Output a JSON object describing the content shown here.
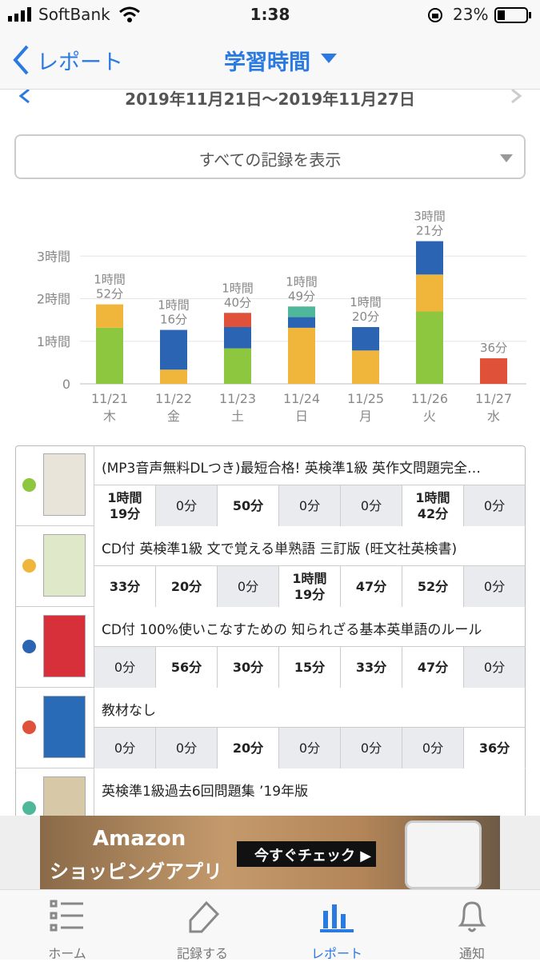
{
  "status_bar": {
    "carrier": "SoftBank",
    "time": "1:38",
    "battery": "23%"
  },
  "nav": {
    "back": "レポート",
    "title": "学習時間"
  },
  "date_range": "2019年11月21日〜2019年11月27日",
  "filter": "すべての記録を表示",
  "chart_data": {
    "type": "bar",
    "stacked": true,
    "categories": [
      "11/21",
      "11/22",
      "11/23",
      "11/24",
      "11/25",
      "11/26",
      "11/27"
    ],
    "weekdays": [
      "木",
      "金",
      "土",
      "日",
      "月",
      "火",
      "水"
    ],
    "series": [
      {
        "color": "#8dc63f",
        "values": [
          79,
          0,
          50,
          0,
          0,
          102,
          0
        ]
      },
      {
        "color": "#f0b63c",
        "values": [
          33,
          20,
          0,
          79,
          47,
          52,
          0
        ]
      },
      {
        "color": "#2c64b4",
        "values": [
          0,
          56,
          30,
          15,
          33,
          47,
          0
        ]
      },
      {
        "color": "#e0513a",
        "values": [
          0,
          0,
          20,
          0,
          0,
          0,
          36
        ]
      },
      {
        "color": "#4fb89a",
        "values": [
          0,
          0,
          0,
          15,
          0,
          0,
          0
        ]
      }
    ],
    "total_labels": [
      [
        "1時間",
        "52分"
      ],
      [
        "1時間",
        "16分"
      ],
      [
        "1時間",
        "40分"
      ],
      [
        "1時間",
        "49分"
      ],
      [
        "1時間",
        "20分"
      ],
      [
        "3時間",
        "21分"
      ],
      [
        "36分"
      ]
    ],
    "ylim": [
      0,
      240
    ],
    "yticks": [
      0,
      {
        "value": 60,
        "label": "1時間"
      },
      {
        "value": 120,
        "label": "2時間"
      },
      {
        "value": 180,
        "label": "3時間"
      }
    ],
    "grid": true
  },
  "materials": [
    {
      "title": "(MP3音声無料DLつき)最短合格! 英検準1級 英作文問題完全…",
      "cells": [
        [
          "1時間",
          "19分"
        ],
        [
          "0分"
        ],
        [
          "50分"
        ],
        [
          "0分"
        ],
        [
          "0分"
        ],
        [
          "1時間",
          "42分"
        ],
        [
          "0分"
        ]
      ],
      "active": [
        true,
        false,
        true,
        false,
        false,
        true,
        false
      ]
    },
    {
      "title": "CD付 英検準1級 文で覚える単熟語 三訂版 (旺文社英検書)",
      "cells": [
        [
          "33分"
        ],
        [
          "20分"
        ],
        [
          "0分"
        ],
        [
          "1時間",
          "19分"
        ],
        [
          "47分"
        ],
        [
          "52分"
        ],
        [
          "0分"
        ]
      ],
      "active": [
        true,
        true,
        false,
        true,
        true,
        true,
        false
      ]
    },
    {
      "title": "CD付 100%使いこなすための 知られざる基本英単語のルール",
      "cells": [
        [
          "0分"
        ],
        [
          "56分"
        ],
        [
          "30分"
        ],
        [
          "15分"
        ],
        [
          "33分"
        ],
        [
          "47分"
        ],
        [
          "0分"
        ]
      ],
      "active": [
        false,
        true,
        true,
        true,
        true,
        true,
        false
      ]
    },
    {
      "title": "教材なし",
      "cells": [
        [
          "0分"
        ],
        [
          "0分"
        ],
        [
          "20分"
        ],
        [
          "0分"
        ],
        [
          "0分"
        ],
        [
          "0分"
        ],
        [
          "36分"
        ]
      ],
      "active": [
        false,
        false,
        true,
        false,
        false,
        false,
        true
      ]
    },
    {
      "title": "英検準1級過去6回問題集 ’19年版"
    }
  ],
  "ad": {
    "brand": "Amazon",
    "app": "ショッピングアプリ",
    "button": "今すぐチェック"
  },
  "tabs": [
    "ホーム",
    "記録する",
    "レポート",
    "通知"
  ]
}
